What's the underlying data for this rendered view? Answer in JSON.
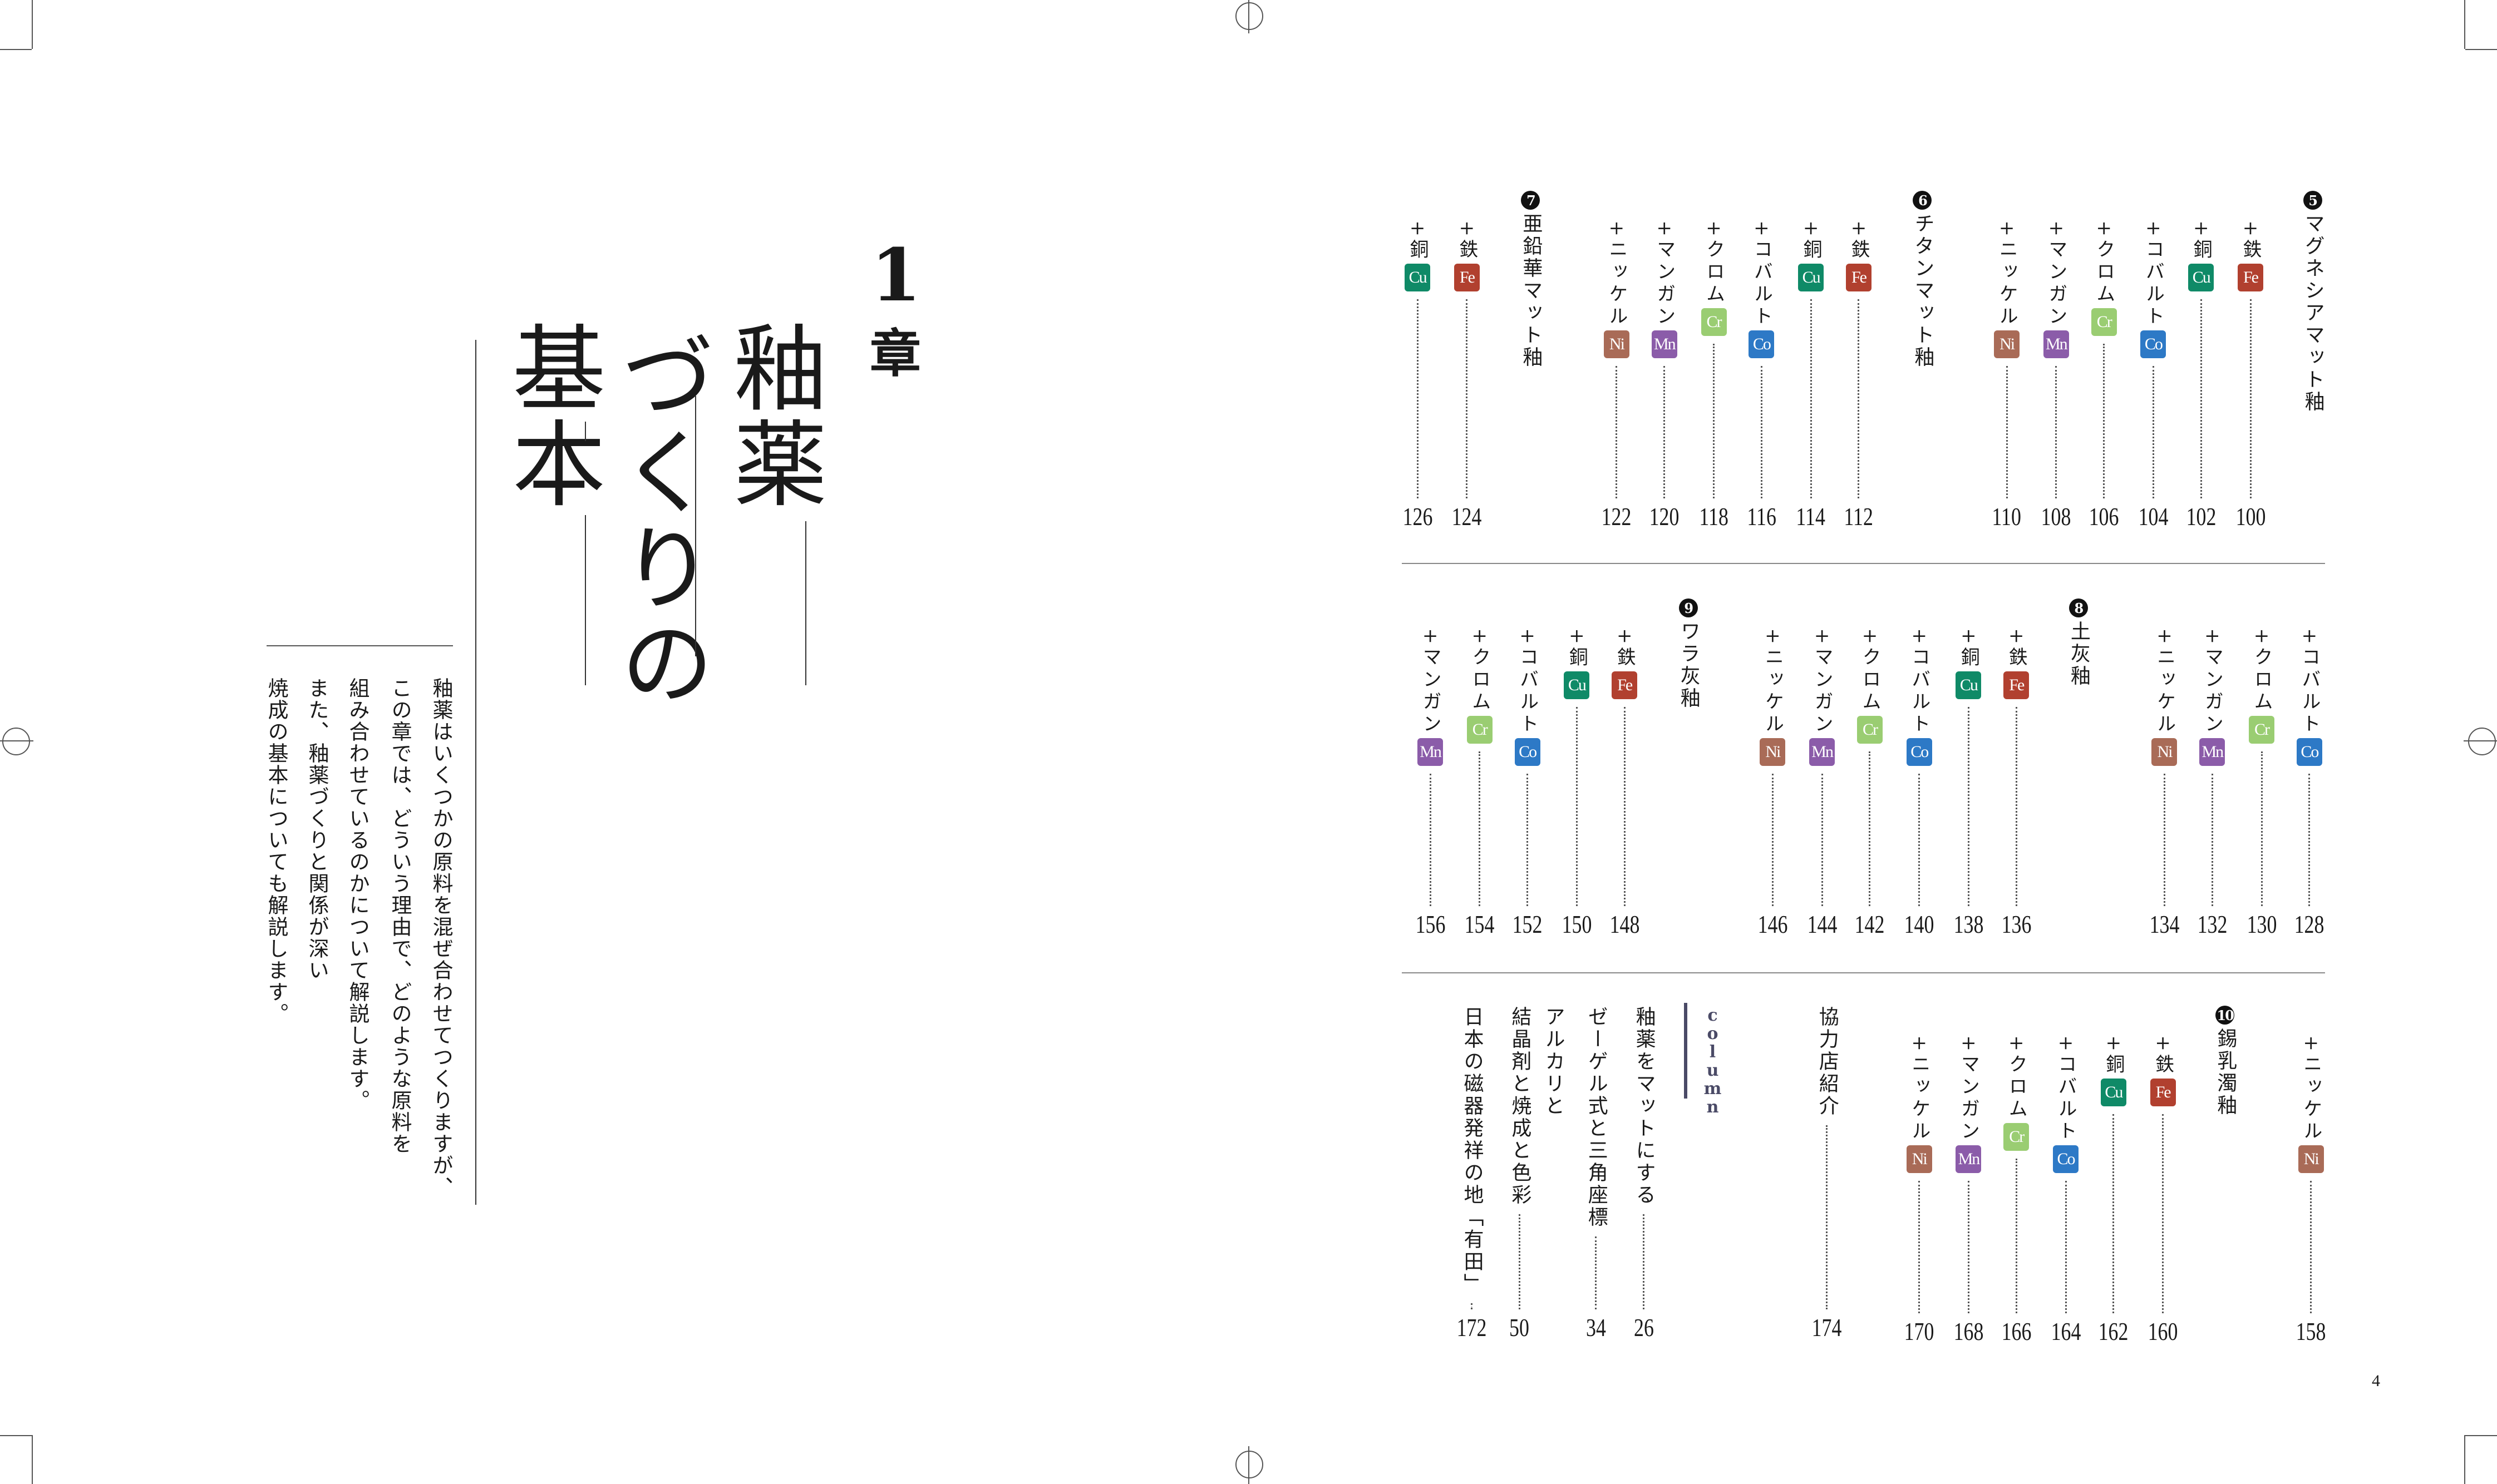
{
  "chapter": {
    "number": "1",
    "suffix": "章",
    "title_lines": [
      "釉薬",
      "づくりの",
      "基本"
    ],
    "intro_lines": [
      "釉薬はいくつかの原料を混ぜ合わせてつくりますが、",
      "この章では、どういう理由で、どのような原料を",
      "組み合わせているのかについて解説します。",
      "また、釉薬づくりと関係が深い",
      "焼成の基本についても解説します。"
    ]
  },
  "toc": {
    "plus": "+",
    "element_colors": {
      "Fe": "#b1402f",
      "Cu": "#0f8a67",
      "Cr": "#9acd72",
      "Co": "#2d79c6",
      "Ni": "#a96b57",
      "Mn": "#8b5ca9"
    },
    "sections": [
      {
        "num": "5",
        "title": "マグネシアマット釉",
        "items": [
          {
            "label": "鉄",
            "el": "Fe",
            "page": "100"
          },
          {
            "label": "銅",
            "el": "Cu",
            "page": "102"
          },
          {
            "label": "コバルト",
            "el": "Co",
            "page": "104"
          },
          {
            "label": "クロム",
            "el": "Cr",
            "page": "106"
          },
          {
            "label": "マンガン",
            "el": "Mn",
            "page": "108"
          },
          {
            "label": "ニッケル",
            "el": "Ni",
            "page": "110"
          }
        ]
      },
      {
        "num": "6",
        "title": "チタンマット釉",
        "items": [
          {
            "label": "鉄",
            "el": "Fe",
            "page": "112"
          },
          {
            "label": "銅",
            "el": "Cu",
            "page": "114"
          },
          {
            "label": "コバルト",
            "el": "Co",
            "page": "116"
          },
          {
            "label": "クロム",
            "el": "Cr",
            "page": "118"
          },
          {
            "label": "マンガン",
            "el": "Mn",
            "page": "120"
          },
          {
            "label": "ニッケル",
            "el": "Ni",
            "page": "122"
          }
        ]
      },
      {
        "num": "7",
        "title": "亜鉛華マット釉",
        "items": [
          {
            "label": "鉄",
            "el": "Fe",
            "page": "124"
          },
          {
            "label": "銅",
            "el": "Cu",
            "page": "126"
          },
          {
            "label": "コバルト",
            "el": "Co",
            "page": "128"
          },
          {
            "label": "クロム",
            "el": "Cr",
            "page": "130"
          },
          {
            "label": "マンガン",
            "el": "Mn",
            "page": "132"
          },
          {
            "label": "ニッケル",
            "el": "Ni",
            "page": "134"
          }
        ]
      },
      {
        "num": "8",
        "title": "土灰釉",
        "items": [
          {
            "label": "鉄",
            "el": "Fe",
            "page": "136"
          },
          {
            "label": "銅",
            "el": "Cu",
            "page": "138"
          },
          {
            "label": "コバルト",
            "el": "Co",
            "page": "140"
          },
          {
            "label": "クロム",
            "el": "Cr",
            "page": "142"
          },
          {
            "label": "マンガン",
            "el": "Mn",
            "page": "144"
          },
          {
            "label": "ニッケル",
            "el": "Ni",
            "page": "146"
          }
        ]
      },
      {
        "num": "9",
        "title": "ワラ灰釉",
        "items": [
          {
            "label": "鉄",
            "el": "Fe",
            "page": "148"
          },
          {
            "label": "銅",
            "el": "Cu",
            "page": "150"
          },
          {
            "label": "コバルト",
            "el": "Co",
            "page": "152"
          },
          {
            "label": "クロム",
            "el": "Cr",
            "page": "154"
          },
          {
            "label": "マンガン",
            "el": "Mn",
            "page": "156"
          },
          {
            "label": "ニッケル",
            "el": "Ni",
            "page": "158"
          }
        ]
      },
      {
        "num": "10",
        "title": "錫乳濁釉",
        "items": [
          {
            "label": "鉄",
            "el": "Fe",
            "page": "160"
          },
          {
            "label": "銅",
            "el": "Cu",
            "page": "162"
          },
          {
            "label": "コバルト",
            "el": "Co",
            "page": "164"
          },
          {
            "label": "クロム",
            "el": "Cr",
            "page": "166"
          },
          {
            "label": "マンガン",
            "el": "Mn",
            "page": "168"
          },
          {
            "label": "ニッケル",
            "el": "Ni",
            "page": "170"
          }
        ]
      }
    ],
    "partners": {
      "title": "協力店紹介",
      "page": "174"
    },
    "column": {
      "label": "column",
      "items": [
        {
          "lines": [
            "釉薬をマットにする"
          ],
          "page": "26"
        },
        {
          "lines": [
            "ゼーゲル式と三角座標"
          ],
          "page": "34"
        },
        {
          "lines": [
            "アルカリと",
            "結晶剤と焼成と色彩"
          ],
          "page": "50"
        },
        {
          "lines": [
            "日本の磁器発祥の地「有田」"
          ],
          "page": "172"
        }
      ]
    }
  },
  "page_number": "4"
}
